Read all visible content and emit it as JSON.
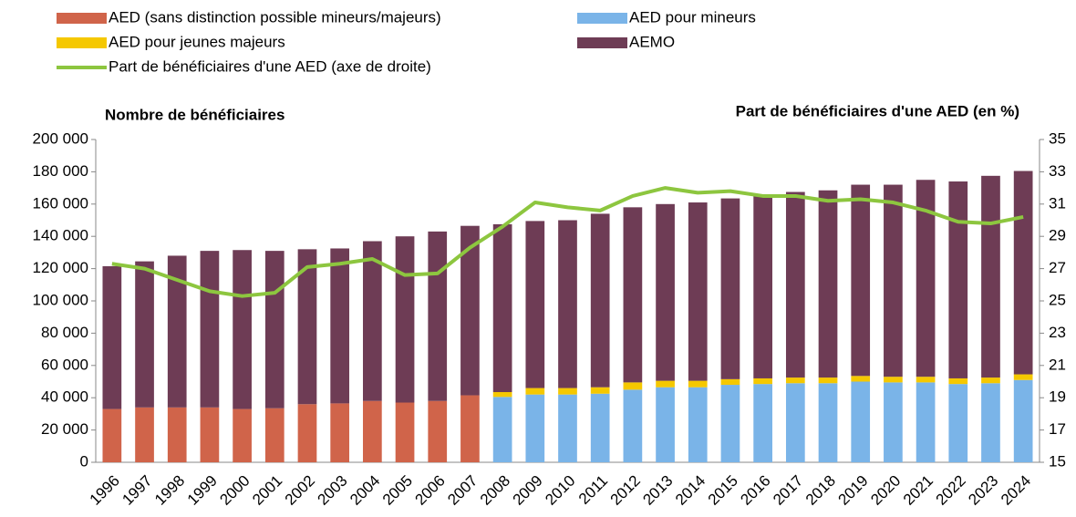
{
  "chart_data": {
    "type": "bar",
    "stacked": true,
    "y_title": "Nombre de bénéficiaires",
    "y2_title": "Part de bénéficiaires d'une AED (en %)",
    "categories": [
      "1996",
      "1997",
      "1998",
      "1999",
      "2000",
      "2001",
      "2002",
      "2003",
      "2004",
      "2005",
      "2006",
      "2007",
      "2008",
      "2009",
      "2010",
      "2011",
      "2012",
      "2013",
      "2014",
      "2015",
      "2016",
      "2017",
      "2018",
      "2019",
      "2020",
      "2021",
      "2022",
      "2023",
      "2024"
    ],
    "series": [
      {
        "name": "AED (sans distinction possible mineurs/majeurs)",
        "color": "#d0644a",
        "type": "bar",
        "values": [
          33000,
          34000,
          34000,
          34000,
          33000,
          33500,
          36000,
          36500,
          38000,
          37000,
          38000,
          41500,
          null,
          null,
          null,
          null,
          null,
          null,
          null,
          null,
          null,
          null,
          null,
          null,
          null,
          null,
          null,
          null,
          null
        ]
      },
      {
        "name": "AED pour mineurs",
        "color": "#7ab4e8",
        "type": "bar",
        "values": [
          null,
          null,
          null,
          null,
          null,
          null,
          null,
          null,
          null,
          null,
          null,
          null,
          40500,
          42000,
          42000,
          42500,
          45000,
          46500,
          46500,
          48000,
          48500,
          49000,
          49000,
          50000,
          49500,
          49500,
          48500,
          49000,
          51000
        ]
      },
      {
        "name": "AED pour jeunes majeurs",
        "color": "#f5c800",
        "type": "bar",
        "values": [
          null,
          null,
          null,
          null,
          null,
          null,
          null,
          null,
          null,
          null,
          null,
          null,
          3000,
          4000,
          4000,
          4000,
          4500,
          4000,
          4000,
          3500,
          3500,
          3500,
          3500,
          3500,
          3500,
          3500,
          3500,
          3500,
          3500
        ]
      },
      {
        "name": "AEMO",
        "color": "#6e3c55",
        "type": "bar",
        "values": [
          88500,
          90500,
          94000,
          97000,
          98500,
          97500,
          96000,
          96000,
          99000,
          103000,
          105000,
          105000,
          104000,
          103500,
          104000,
          107500,
          108500,
          109500,
          110500,
          112000,
          113000,
          115000,
          116000,
          118500,
          119000,
          122000,
          122000,
          125000,
          126000
        ]
      },
      {
        "name": "Part de bénéficiaires d'une AED (axe de droite)",
        "color": "#8dc63f",
        "type": "line",
        "axis": "y2",
        "values": [
          27.3,
          27.0,
          26.3,
          25.6,
          25.3,
          25.5,
          27.1,
          27.3,
          27.6,
          26.6,
          26.7,
          28.3,
          29.6,
          31.1,
          30.8,
          30.6,
          31.5,
          32.0,
          31.7,
          31.8,
          31.5,
          31.5,
          31.2,
          31.3,
          31.1,
          30.6,
          29.9,
          29.8,
          30.2
        ]
      }
    ],
    "ylim": [
      0,
      200000
    ],
    "yticks": [
      0,
      {
        "value": 20000,
        "label": "20 000"
      },
      {
        "value": 40000,
        "label": "40 000"
      },
      {
        "value": 60000,
        "label": "60 000"
      },
      {
        "value": 80000,
        "label": "80 000"
      },
      {
        "value": 100000,
        "label": "100 000"
      },
      {
        "value": 120000,
        "label": "120 000"
      },
      {
        "value": 140000,
        "label": "140 000"
      },
      {
        "value": 160000,
        "label": "160 000"
      },
      {
        "value": 180000,
        "label": "180 000"
      },
      {
        "value": 200000,
        "label": "200 000"
      }
    ],
    "y2lim": [
      15,
      35
    ],
    "y2ticks": [
      15,
      17,
      19,
      21,
      23,
      25,
      27,
      29,
      31,
      33,
      35
    ],
    "grid": false,
    "legend": "top"
  }
}
